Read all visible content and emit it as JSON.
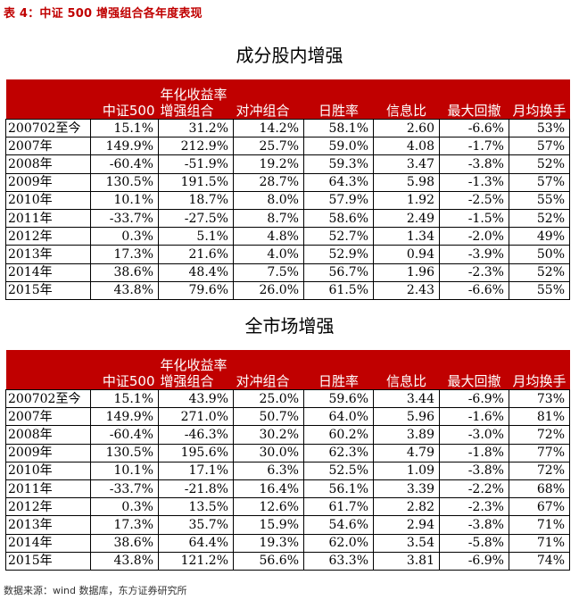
{
  "title": "表 4：中证 500 增强组合各年度表现",
  "sections": [
    {
      "heading": "成分股内增强",
      "header": {
        "col1": "中证500",
        "col2a": "年化收益率",
        "col2b": "增强组合",
        "col3": "对冲组合",
        "col4": "日胜率",
        "col5": "信息比",
        "col6": "最大回撤",
        "col7": "月均换手"
      },
      "rows": [
        [
          "200702至今",
          "15.1%",
          "31.2%",
          "14.2%",
          "58.1%",
          "2.60",
          "-6.6%",
          "53%"
        ],
        [
          "2007年",
          "149.9%",
          "212.9%",
          "25.7%",
          "59.0%",
          "4.08",
          "-1.7%",
          "57%"
        ],
        [
          "2008年",
          "-60.4%",
          "-51.9%",
          "19.2%",
          "59.3%",
          "3.47",
          "-3.8%",
          "52%"
        ],
        [
          "2009年",
          "130.5%",
          "191.5%",
          "28.7%",
          "64.3%",
          "5.98",
          "-1.3%",
          "57%"
        ],
        [
          "2010年",
          "10.1%",
          "18.7%",
          "8.0%",
          "57.9%",
          "1.92",
          "-2.5%",
          "55%"
        ],
        [
          "2011年",
          "-33.7%",
          "-27.5%",
          "8.7%",
          "58.6%",
          "2.49",
          "-1.5%",
          "52%"
        ],
        [
          "2012年",
          "0.3%",
          "5.1%",
          "4.8%",
          "52.7%",
          "1.34",
          "-2.0%",
          "49%"
        ],
        [
          "2013年",
          "17.3%",
          "21.6%",
          "4.0%",
          "52.9%",
          "0.94",
          "-3.9%",
          "50%"
        ],
        [
          "2014年",
          "38.6%",
          "48.4%",
          "7.5%",
          "56.7%",
          "1.96",
          "-2.3%",
          "52%"
        ],
        [
          "2015年",
          "43.8%",
          "79.6%",
          "26.0%",
          "61.5%",
          "2.43",
          "-6.6%",
          "55%"
        ]
      ]
    },
    {
      "heading": "全市场增强",
      "header": {
        "col1": "中证500",
        "col2a": "年化收益率",
        "col2b": "增强组合",
        "col3": "对冲组合",
        "col4": "日胜率",
        "col5": "信息比",
        "col6": "最大回撤",
        "col7": "月均换手"
      },
      "rows": [
        [
          "200702至今",
          "15.1%",
          "43.9%",
          "25.0%",
          "59.6%",
          "3.44",
          "-6.9%",
          "73%"
        ],
        [
          "2007年",
          "149.9%",
          "271.0%",
          "50.7%",
          "64.0%",
          "5.96",
          "-1.6%",
          "81%"
        ],
        [
          "2008年",
          "-60.4%",
          "-46.3%",
          "30.2%",
          "60.2%",
          "3.89",
          "-3.0%",
          "72%"
        ],
        [
          "2009年",
          "130.5%",
          "195.6%",
          "30.0%",
          "62.3%",
          "4.79",
          "-1.8%",
          "77%"
        ],
        [
          "2010年",
          "10.1%",
          "17.1%",
          "6.3%",
          "52.5%",
          "1.09",
          "-3.8%",
          "72%"
        ],
        [
          "2011年",
          "-33.7%",
          "-21.8%",
          "16.4%",
          "56.1%",
          "3.39",
          "-2.2%",
          "68%"
        ],
        [
          "2012年",
          "0.3%",
          "13.5%",
          "12.6%",
          "61.7%",
          "2.82",
          "-2.3%",
          "67%"
        ],
        [
          "2013年",
          "17.3%",
          "35.7%",
          "15.9%",
          "54.6%",
          "2.94",
          "-3.8%",
          "71%"
        ],
        [
          "2014年",
          "38.6%",
          "64.4%",
          "19.3%",
          "62.0%",
          "3.54",
          "-5.8%",
          "71%"
        ],
        [
          "2015年",
          "43.8%",
          "121.2%",
          "56.6%",
          "63.3%",
          "3.81",
          "-6.9%",
          "74%"
        ]
      ]
    }
  ],
  "footer": "数据来源：wind 数据库，东方证券研究所",
  "colors": {
    "header_bg": "#c00000",
    "title": "#c00000"
  }
}
